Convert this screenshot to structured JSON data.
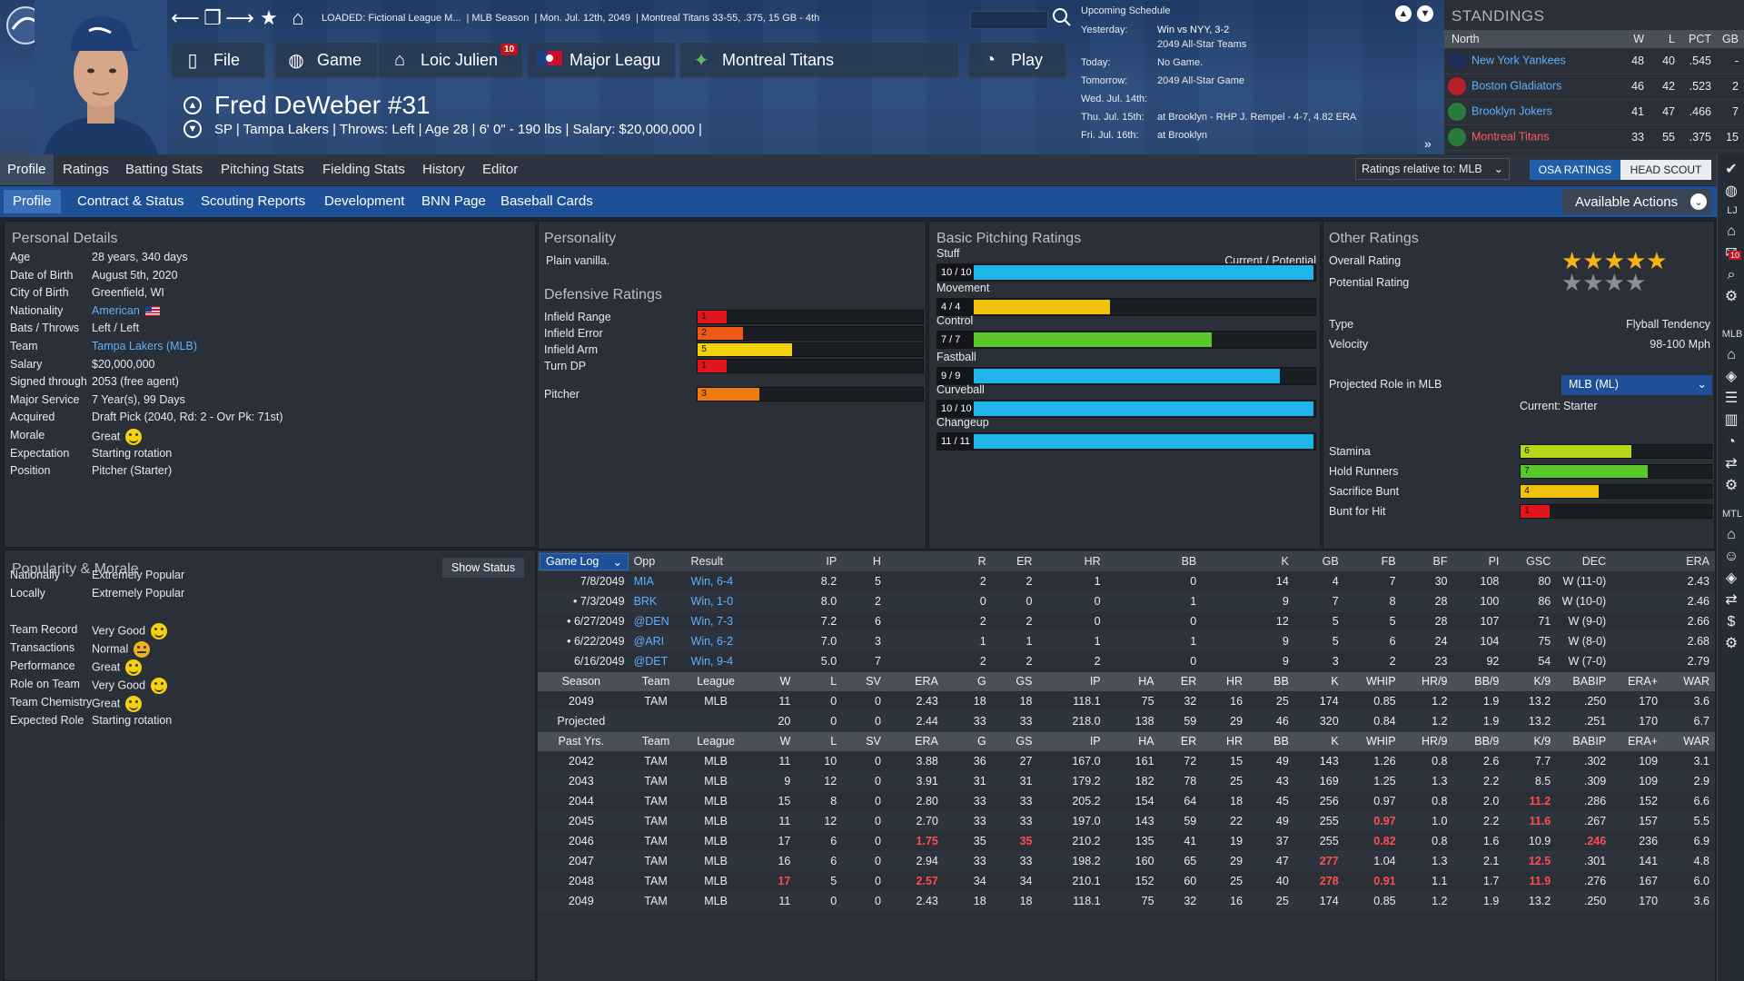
{
  "header": {
    "loaded": "LOADED: Fictional League M...",
    "season": "MLB Season",
    "date": "Mon. Jul. 12th, 2049",
    "team_record": "Montreal Titans  33-55, .375, 15 GB - 4th",
    "nav": {
      "file": "File",
      "game": "Game",
      "manager": "Loic Julien",
      "manager_badge": "10",
      "league": "Major Leagu",
      "team": "Montreal Titans",
      "play": "Play"
    },
    "player_name": "Fred DeWeber  #31",
    "player_info": "SP | Tampa Lakers | Throws: Left | Age 28  |  6' 0\" - 190 lbs  |  Salary: $20,000,000  |"
  },
  "schedule": {
    "title": "Upcoming Schedule",
    "rows": [
      {
        "label": "Yesterday:",
        "value": "Win vs NYY, 3-2"
      },
      {
        "label": "",
        "value": "2049 All-Star Teams"
      },
      {
        "label": "Today:",
        "value": "No Game."
      },
      {
        "label": "Tomorrow:",
        "value": "2049 All-Star Game"
      },
      {
        "label": "Wed. Jul. 14th:",
        "value": ""
      },
      {
        "label": "Thu. Jul. 15th:",
        "value": "at Brooklyn - RHP J. Rempel - 4-7, 4.82 ERA"
      },
      {
        "label": "Fri. Jul. 16th:",
        "value": "at Brooklyn"
      }
    ]
  },
  "standings": {
    "title": "STANDINGS",
    "division": "North",
    "cols": [
      "W",
      "L",
      "PCT",
      "GB"
    ],
    "rows": [
      {
        "team": "New York Yankees",
        "w": "48",
        "l": "40",
        "pct": ".545",
        "gb": "-",
        "color": "#1c2d5a"
      },
      {
        "team": "Boston Gladiators",
        "w": "46",
        "l": "42",
        "pct": ".523",
        "gb": "2",
        "color": "#b32025"
      },
      {
        "team": "Brooklyn Jokers",
        "w": "41",
        "l": "47",
        "pct": ".466",
        "gb": "7",
        "color": "#2b7a3b"
      },
      {
        "team": "Montreal Titans",
        "w": "33",
        "l": "55",
        "pct": ".375",
        "gb": "15",
        "color": "#2b7a3b"
      }
    ]
  },
  "tabs1": [
    "Profile",
    "Ratings",
    "Batting Stats",
    "Pitching Stats",
    "Fielding Stats",
    "History",
    "Editor"
  ],
  "ratings_relative": "Ratings relative to: MLB",
  "osa": "OSA RATINGS",
  "scout": "HEAD SCOUT",
  "tabs2": [
    "Profile",
    "Contract & Status",
    "Scouting Reports",
    "Development",
    "BNN Page",
    "Baseball Cards"
  ],
  "available_actions": "Available Actions",
  "personal": {
    "title": "Personal Details",
    "rows": [
      {
        "label": "Age",
        "value": "28 years, 340 days"
      },
      {
        "label": "Date of Birth",
        "value": "August 5th, 2020"
      },
      {
        "label": "City of Birth",
        "value": "Greenfield, WI"
      },
      {
        "label": "Nationality",
        "value": "American"
      },
      {
        "label": "Bats / Throws",
        "value": "Left / Left"
      },
      {
        "label": "Team",
        "value": "Tampa Lakers (MLB)"
      },
      {
        "label": "Salary",
        "value": "$20,000,000"
      },
      {
        "label": "Signed through",
        "value": "2053 (free agent)"
      },
      {
        "label": "Major Service",
        "value": "7 Year(s), 99 Days"
      },
      {
        "label": "Acquired",
        "value": "Draft Pick (2040, Rd: 2 - Ovr Pk: 71st)"
      },
      {
        "label": "Morale",
        "value": "Great"
      },
      {
        "label": "Expectation",
        "value": "Starting rotation"
      },
      {
        "label": "Position",
        "value": "Pitcher (Starter)"
      }
    ]
  },
  "popularity": {
    "title": "Popularity & Morale",
    "show_status": "Show Status",
    "rows": [
      {
        "label": "Nationally",
        "value": "Extremely Popular"
      },
      {
        "label": "Locally",
        "value": "Extremely Popular"
      },
      {
        "label": "Team Record",
        "value": "Very Good"
      },
      {
        "label": "Transactions",
        "value": "Normal"
      },
      {
        "label": "Performance",
        "value": "Great"
      },
      {
        "label": "Role on Team",
        "value": "Very Good"
      },
      {
        "label": "Team Chemistry",
        "value": "Great"
      },
      {
        "label": "Expected Role",
        "value": "Starting rotation"
      }
    ]
  },
  "personality": {
    "title": "Personality",
    "value": "Plain vanilla."
  },
  "defensive": {
    "title": "Defensive Ratings",
    "rows": [
      {
        "label": "Infield Range",
        "value": 1,
        "color": "#e0161c"
      },
      {
        "label": "Infield Error",
        "value": 2,
        "color": "#ee5a15"
      },
      {
        "label": "Infield Arm",
        "value": 5,
        "color": "#f2d20a"
      },
      {
        "label": "Turn DP",
        "value": 1,
        "color": "#e0161c"
      },
      {
        "label": "Pitcher",
        "value": 3,
        "color": "#ee7b12"
      }
    ]
  },
  "pitching": {
    "title": "Basic Pitching Ratings",
    "cp_label": "Current / Potential",
    "rows": [
      {
        "label": "Stuff",
        "text": "10 / 10",
        "value": 10,
        "color": "#1fb4ea"
      },
      {
        "label": "Movement",
        "text": "4 / 4",
        "value": 4,
        "color": "#f1c20b"
      },
      {
        "label": "Control",
        "text": "7 / 7",
        "value": 7,
        "color": "#5ac72c"
      },
      {
        "label": "Fastball",
        "text": "9 / 9",
        "value": 9,
        "color": "#1fb4ea"
      },
      {
        "label": "Curveball",
        "text": "10 / 10",
        "value": 10,
        "color": "#1fb4ea"
      },
      {
        "label": "Changeup",
        "text": "11 / 11",
        "value": 11,
        "color": "#1fb4ea"
      }
    ]
  },
  "other": {
    "title": "Other Ratings",
    "overall_label": "Overall Rating",
    "overall_stars": 5,
    "potential_label": "Potential Rating",
    "potential_stars": 0,
    "type_label": "Type",
    "type_value": "Flyball Tendency",
    "velocity_label": "Velocity",
    "velocity_value": "98-100 Mph",
    "role_label": "Projected Role in MLB",
    "role_select": "MLB (ML)",
    "current_label": "Current:",
    "current_value": "Starter",
    "bars": [
      {
        "label": "Stamina",
        "value": 6,
        "color": "#b8d61a"
      },
      {
        "label": "Hold Runners",
        "value": 7,
        "color": "#5ac72c"
      },
      {
        "label": "Sacrifice Bunt",
        "value": 4,
        "color": "#f1c20b"
      },
      {
        "label": "Bunt for Hit",
        "value": 1,
        "color": "#e0161c"
      }
    ]
  },
  "gamelog": {
    "select": "Game Log",
    "headers": [
      "Opp",
      "Result",
      "IP",
      "H",
      "R",
      "ER",
      "HR",
      "BB",
      "K",
      "GB",
      "FB",
      "BF",
      "PI",
      "GSC",
      "DEC",
      "ERA"
    ],
    "rows": [
      [
        "7/8/2049",
        "MIA",
        "Win, 6-4",
        "8.2",
        "5",
        "2",
        "2",
        "1",
        "0",
        "14",
        "4",
        "7",
        "30",
        "108",
        "80",
        "W (11-0)",
        "2.43"
      ],
      [
        "• 7/3/2049",
        "BRK",
        "Win, 1-0",
        "8.0",
        "2",
        "0",
        "0",
        "0",
        "1",
        "9",
        "7",
        "8",
        "28",
        "100",
        "86",
        "W (10-0)",
        "2.46"
      ],
      [
        "• 6/27/2049",
        "@DEN",
        "Win, 7-3",
        "7.2",
        "6",
        "2",
        "2",
        "0",
        "0",
        "12",
        "5",
        "5",
        "28",
        "107",
        "71",
        "W (9-0)",
        "2.66"
      ],
      [
        "• 6/22/2049",
        "@ARI",
        "Win, 6-2",
        "7.0",
        "3",
        "1",
        "1",
        "1",
        "1",
        "9",
        "5",
        "6",
        "24",
        "104",
        "75",
        "W (8-0)",
        "2.68"
      ],
      [
        "6/16/2049",
        "@DET",
        "Win, 9-4",
        "5.0",
        "7",
        "2",
        "2",
        "2",
        "0",
        "9",
        "3",
        "2",
        "23",
        "92",
        "54",
        "W (7-0)",
        "2.79"
      ]
    ]
  },
  "season": {
    "headers": [
      "Season",
      "Team",
      "League",
      "W",
      "L",
      "SV",
      "ERA",
      "G",
      "GS",
      "IP",
      "HA",
      "ER",
      "HR",
      "BB",
      "K",
      "WHIP",
      "HR/9",
      "BB/9",
      "K/9",
      "BABIP",
      "ERA+",
      "WAR"
    ],
    "rows": [
      [
        "2049",
        "TAM",
        "MLB",
        "11",
        "0",
        "0",
        "2.43",
        "18",
        "18",
        "118.1",
        "75",
        "32",
        "16",
        "25",
        "174",
        "0.85",
        "1.2",
        "1.9",
        "13.2",
        ".250",
        "170",
        "3.6"
      ],
      [
        "Projected",
        "",
        "",
        "20",
        "0",
        "0",
        "2.44",
        "33",
        "33",
        "218.0",
        "138",
        "59",
        "29",
        "46",
        "320",
        "0.84",
        "1.2",
        "1.9",
        "13.2",
        ".251",
        "170",
        "6.7"
      ]
    ]
  },
  "past": {
    "headers": [
      "Past Yrs.",
      "Team",
      "League",
      "W",
      "L",
      "SV",
      "ERA",
      "G",
      "GS",
      "IP",
      "HA",
      "ER",
      "HR",
      "BB",
      "K",
      "WHIP",
      "HR/9",
      "BB/9",
      "K/9",
      "BABIP",
      "ERA+",
      "WAR"
    ],
    "rows": [
      [
        "2042",
        "TAM",
        "MLB",
        "11",
        "10",
        "0",
        "3.88",
        "36",
        "27",
        "167.0",
        "161",
        "72",
        "15",
        "49",
        "143",
        "1.26",
        "0.8",
        "2.6",
        "7.7",
        ".302",
        "109",
        "3.1"
      ],
      [
        "2043",
        "TAM",
        "MLB",
        "9",
        "12",
        "0",
        "3.91",
        "31",
        "31",
        "179.2",
        "182",
        "78",
        "25",
        "43",
        "169",
        "1.25",
        "1.3",
        "2.2",
        "8.5",
        ".309",
        "109",
        "2.9"
      ],
      [
        "2044",
        "TAM",
        "MLB",
        "15",
        "8",
        "0",
        "2.80",
        "33",
        "33",
        "205.2",
        "154",
        "64",
        "18",
        "45",
        "256",
        "0.97",
        "0.8",
        "2.0",
        "11.2",
        ".286",
        "152",
        "6.6"
      ],
      [
        "2045",
        "TAM",
        "MLB",
        "11",
        "12",
        "0",
        "2.70",
        "33",
        "33",
        "197.0",
        "143",
        "59",
        "22",
        "49",
        "255",
        "0.97",
        "1.0",
        "2.2",
        "11.6",
        ".267",
        "157",
        "5.5"
      ],
      [
        "2046",
        "TAM",
        "MLB",
        "17",
        "6",
        "0",
        "1.75",
        "35",
        "35",
        "210.2",
        "135",
        "41",
        "19",
        "37",
        "255",
        "0.82",
        "0.8",
        "1.6",
        "10.9",
        ".246",
        "236",
        "6.9"
      ],
      [
        "2047",
        "TAM",
        "MLB",
        "16",
        "6",
        "0",
        "2.94",
        "33",
        "33",
        "198.2",
        "160",
        "65",
        "29",
        "47",
        "277",
        "1.04",
        "1.3",
        "2.1",
        "12.5",
        ".301",
        "141",
        "4.8"
      ],
      [
        "2048",
        "TAM",
        "MLB",
        "17",
        "5",
        "0",
        "2.57",
        "34",
        "34",
        "210.1",
        "152",
        "60",
        "25",
        "40",
        "278",
        "0.91",
        "1.1",
        "1.7",
        "11.9",
        ".276",
        "167",
        "6.0"
      ],
      [
        "2049",
        "TAM",
        "MLB",
        "11",
        "0",
        "0",
        "2.43",
        "18",
        "18",
        "118.1",
        "75",
        "32",
        "16",
        "25",
        "174",
        "0.85",
        "1.2",
        "1.9",
        "13.2",
        ".250",
        "170",
        "3.6"
      ]
    ],
    "highlights": [
      [
        2,
        15,
        "red"
      ],
      [
        2,
        18,
        "red"
      ],
      [
        3,
        15,
        "red"
      ],
      [
        3,
        18,
        "red"
      ],
      [
        4,
        6,
        "red"
      ],
      [
        4,
        8,
        "red"
      ],
      [
        4,
        15,
        "red"
      ],
      [
        4,
        19,
        "red"
      ],
      [
        5,
        14,
        "red"
      ],
      [
        5,
        18,
        "red"
      ],
      [
        6,
        3,
        "red"
      ],
      [
        6,
        6,
        "red"
      ],
      [
        6,
        14,
        "red"
      ],
      [
        6,
        15,
        "red"
      ],
      [
        6,
        18,
        "red"
      ]
    ]
  },
  "sidebar": {
    "lj": "LJ",
    "badge": "10",
    "mlb": "MLB",
    "mtl": "MTL"
  }
}
